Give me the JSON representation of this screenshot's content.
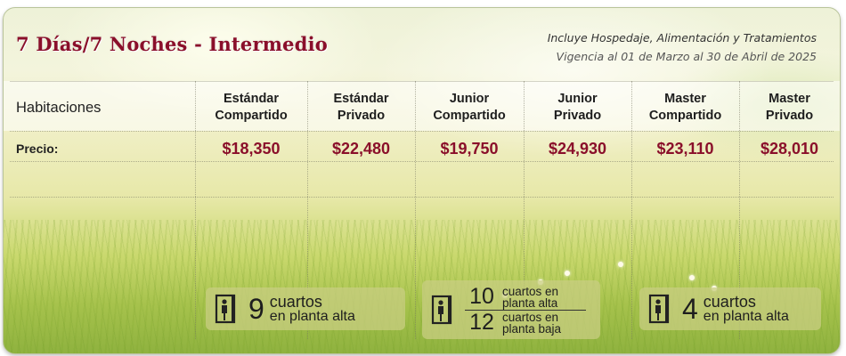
{
  "title": "7 Días/7 Noches - Intermedio",
  "includes": "Incluye Hospedaje, Alimentación y Tratamientos",
  "validity": "Vigencia al 01 de Marzo al 30 de Abril de 2025",
  "table": {
    "rooms_label": "Habitaciones",
    "price_label": "Precio:",
    "columns": [
      {
        "line1": "Estándar",
        "line2": "Compartido",
        "price": "$18,350"
      },
      {
        "line1": "Estándar",
        "line2": "Privado",
        "price": "$22,480"
      },
      {
        "line1": "Junior",
        "line2": "Compartido",
        "price": "$19,750"
      },
      {
        "line1": "Junior",
        "line2": "Privado",
        "price": "$24,930"
      },
      {
        "line1": "Master",
        "line2": "Compartido",
        "price": "$23,110"
      },
      {
        "line1": "Master",
        "line2": "Privado",
        "price": "$28,010"
      }
    ]
  },
  "badges": {
    "estandar": {
      "count": "9",
      "line1": "cuartos",
      "line2": "en planta alta"
    },
    "junior": {
      "top": {
        "count": "10",
        "line1": "cuartos en",
        "line2": "planta alta"
      },
      "bottom": {
        "count": "12",
        "line1": "cuartos en",
        "line2": "planta baja"
      }
    },
    "master": {
      "count": "4",
      "line1": "cuartos",
      "line2": "en planta alta"
    }
  },
  "colors": {
    "accent": "#8a0f2a",
    "text": "#1e1e1e"
  },
  "icons": [
    "door-person-icon"
  ]
}
